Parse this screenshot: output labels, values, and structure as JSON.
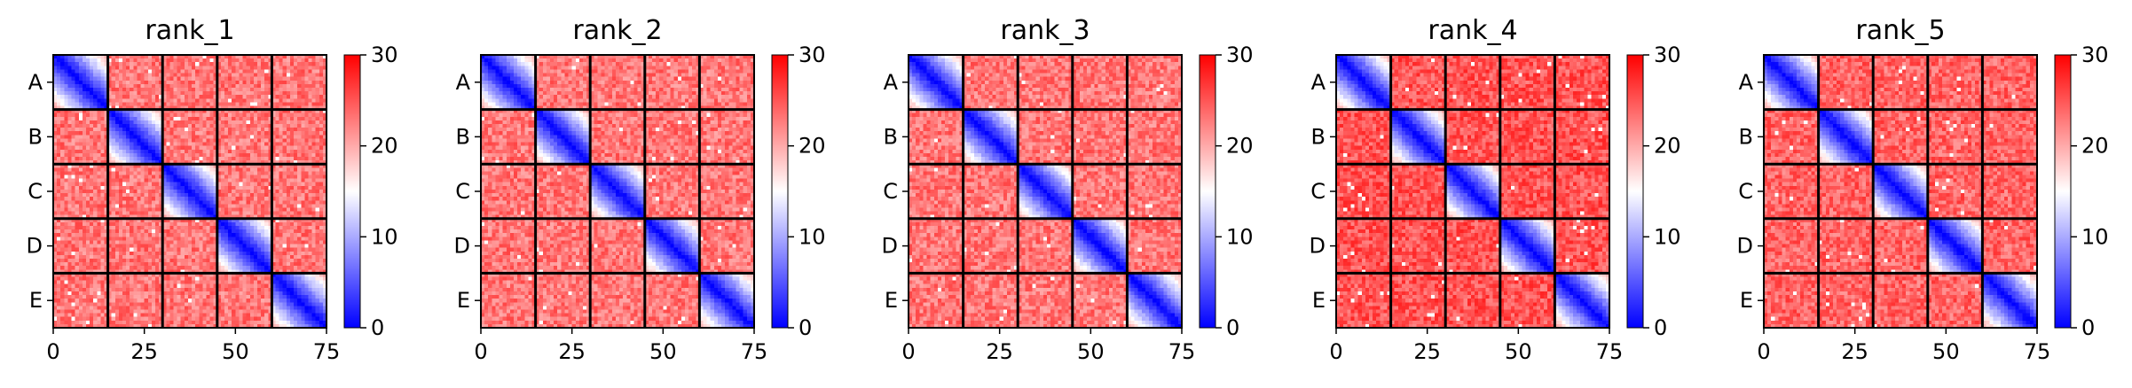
{
  "chart_data": [
    {
      "type": "heatmap",
      "title": "rank_1",
      "row_labels": [
        "A",
        "B",
        "C",
        "D",
        "E"
      ],
      "x_ticks": [
        0,
        25,
        50,
        75
      ],
      "xlim": [
        0,
        75
      ],
      "colorbar": {
        "min": 0,
        "max": 30,
        "ticks": [
          0,
          10,
          20,
          30
        ],
        "colors": [
          "#0000ff",
          "#ffffff",
          "#ff0000"
        ]
      },
      "blocks": 5,
      "block_size": 15,
      "diag_value": 0,
      "offdiag_value": 23
    },
    {
      "type": "heatmap",
      "title": "rank_2",
      "row_labels": [
        "A",
        "B",
        "C",
        "D",
        "E"
      ],
      "x_ticks": [
        0,
        25,
        50,
        75
      ],
      "xlim": [
        0,
        75
      ],
      "colorbar": {
        "min": 0,
        "max": 30,
        "ticks": [
          0,
          10,
          20,
          30
        ],
        "colors": [
          "#0000ff",
          "#ffffff",
          "#ff0000"
        ]
      },
      "blocks": 5,
      "block_size": 15,
      "diag_value": 0,
      "offdiag_value": 23
    },
    {
      "type": "heatmap",
      "title": "rank_3",
      "row_labels": [
        "A",
        "B",
        "C",
        "D",
        "E"
      ],
      "x_ticks": [
        0,
        25,
        50,
        75
      ],
      "xlim": [
        0,
        75
      ],
      "colorbar": {
        "min": 0,
        "max": 30,
        "ticks": [
          0,
          10,
          20,
          30
        ],
        "colors": [
          "#0000ff",
          "#ffffff",
          "#ff0000"
        ]
      },
      "blocks": 5,
      "block_size": 15,
      "diag_value": 0,
      "offdiag_value": 23
    },
    {
      "type": "heatmap",
      "title": "rank_4",
      "row_labels": [
        "A",
        "B",
        "C",
        "D",
        "E"
      ],
      "x_ticks": [
        0,
        25,
        50,
        75
      ],
      "xlim": [
        0,
        75
      ],
      "colorbar": {
        "min": 0,
        "max": 30,
        "ticks": [
          0,
          10,
          20,
          30
        ],
        "colors": [
          "#0000ff",
          "#ffffff",
          "#ff0000"
        ]
      },
      "blocks": 5,
      "block_size": 15,
      "diag_value": 0,
      "offdiag_value": 25
    },
    {
      "type": "heatmap",
      "title": "rank_5",
      "row_labels": [
        "A",
        "B",
        "C",
        "D",
        "E"
      ],
      "x_ticks": [
        0,
        25,
        50,
        75
      ],
      "xlim": [
        0,
        75
      ],
      "colorbar": {
        "min": 0,
        "max": 30,
        "ticks": [
          0,
          10,
          20,
          30
        ],
        "colors": [
          "#0000ff",
          "#ffffff",
          "#ff0000"
        ]
      },
      "blocks": 5,
      "block_size": 15,
      "diag_value": 0,
      "offdiag_value": 24
    }
  ]
}
